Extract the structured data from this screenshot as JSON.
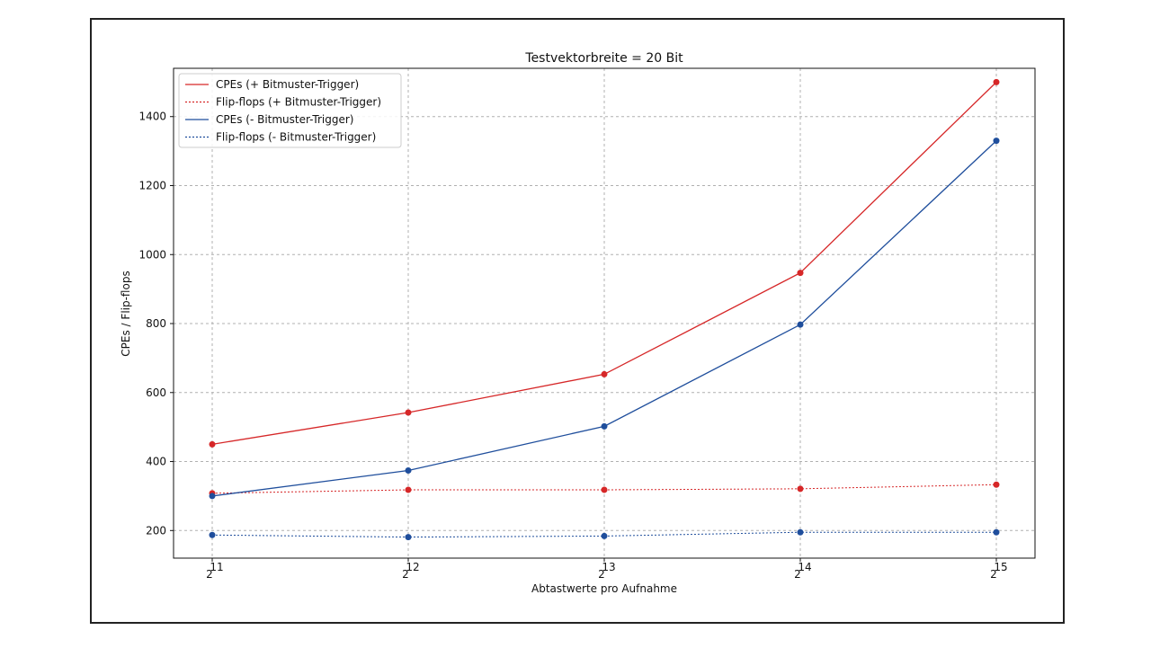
{
  "chart_data": {
    "type": "line",
    "title": "Testvektorbreite = 20 Bit",
    "xlabel": "Abtastwerte pro Aufnahme",
    "ylabel": "CPEs / Flip-flops",
    "x_ticks": [
      {
        "base": "2",
        "exp": "11"
      },
      {
        "base": "2",
        "exp": "12"
      },
      {
        "base": "2",
        "exp": "13"
      },
      {
        "base": "2",
        "exp": "14"
      },
      {
        "base": "2",
        "exp": "15"
      }
    ],
    "x": [
      2048,
      4096,
      8192,
      16384,
      32768
    ],
    "x_scale": "log2",
    "y_ticks": [
      200,
      400,
      600,
      800,
      1000,
      1200,
      1400
    ],
    "ylim": [
      120,
      1540
    ],
    "grid": true,
    "legend_position": "top-left",
    "series": [
      {
        "name": "CPEs (+ Bitmuster-Trigger)",
        "color": "#d62728",
        "dash": "solid",
        "values": [
          450,
          542,
          653,
          947,
          1500
        ]
      },
      {
        "name": "Flip-flops (+ Bitmuster-Trigger)",
        "color": "#d62728",
        "dash": "dotted",
        "values": [
          308,
          318,
          318,
          321,
          333
        ]
      },
      {
        "name": "CPEs (- Bitmuster-Trigger)",
        "color": "#1f4e9c",
        "dash": "solid",
        "values": [
          300,
          374,
          502,
          797,
          1330
        ]
      },
      {
        "name": "Flip-flops (- Bitmuster-Trigger)",
        "color": "#1f4e9c",
        "dash": "dotted",
        "values": [
          187,
          181,
          184,
          195,
          195
        ]
      }
    ]
  }
}
